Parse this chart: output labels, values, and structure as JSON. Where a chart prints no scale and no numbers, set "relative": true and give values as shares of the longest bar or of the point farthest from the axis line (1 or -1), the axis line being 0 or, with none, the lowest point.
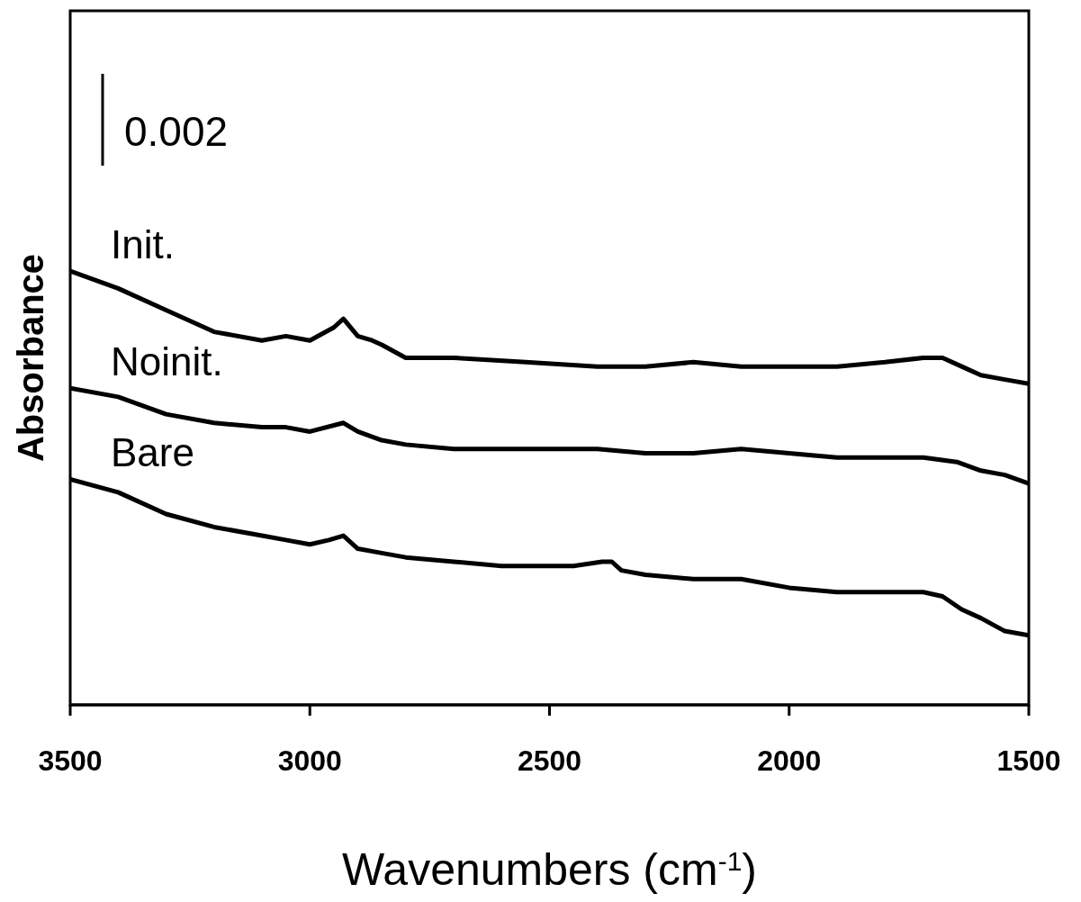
{
  "chart_data": {
    "type": "line",
    "relative": true,
    "xlabel": "Wavenumbers (cm$^{-1}$)",
    "ylabel": "Absorbance",
    "annotations": [
      "0.002"
    ],
    "xlim": [
      3500,
      1500
    ],
    "xticks": [
      3500,
      3000,
      2500,
      2000,
      1500
    ],
    "legend": false,
    "grid": false,
    "marker": "none",
    "line_style": "solid",
    "x": [
      3500,
      3400,
      3300,
      3200,
      3100,
      3050,
      3000,
      2950,
      2930,
      2900,
      2870,
      2850,
      2800,
      2700,
      2550,
      2400,
      2300,
      2200,
      2100,
      2000,
      1900,
      1800,
      1720,
      1680,
      1640,
      1600,
      1550,
      1500
    ],
    "series": [
      {
        "name": "Init.",
        "color": "#000000",
        "values": [
          1.0,
          0.96,
          0.91,
          0.86,
          0.84,
          0.85,
          0.84,
          0.87,
          0.89,
          0.85,
          0.84,
          0.83,
          0.8,
          0.8,
          0.79,
          0.78,
          0.78,
          0.79,
          0.78,
          0.78,
          0.78,
          0.79,
          0.8,
          0.8,
          0.78,
          0.76,
          0.75,
          0.74
        ]
      },
      {
        "name": "Noinit.",
        "color": "#000000",
        "x": [
          3500,
          3400,
          3300,
          3200,
          3100,
          3050,
          3000,
          2930,
          2900,
          2850,
          2800,
          2700,
          2500,
          2400,
          2300,
          2200,
          2100,
          2000,
          1900,
          1800,
          1720,
          1650,
          1600,
          1550,
          1500
        ],
        "values": [
          0.73,
          0.71,
          0.67,
          0.65,
          0.64,
          0.64,
          0.63,
          0.65,
          0.63,
          0.61,
          0.6,
          0.59,
          0.59,
          0.59,
          0.58,
          0.58,
          0.59,
          0.58,
          0.57,
          0.57,
          0.57,
          0.56,
          0.54,
          0.53,
          0.51
        ]
      },
      {
        "name": "Bare",
        "color": "#000000",
        "x": [
          3500,
          3400,
          3300,
          3200,
          3100,
          3050,
          3000,
          2960,
          2930,
          2900,
          2850,
          2800,
          2700,
          2600,
          2450,
          2390,
          2370,
          2350,
          2300,
          2200,
          2100,
          2000,
          1900,
          1800,
          1720,
          1680,
          1640,
          1600,
          1550,
          1500
        ],
        "values": [
          0.52,
          0.49,
          0.44,
          0.41,
          0.39,
          0.38,
          0.37,
          0.38,
          0.39,
          0.36,
          0.35,
          0.34,
          0.33,
          0.32,
          0.32,
          0.33,
          0.33,
          0.31,
          0.3,
          0.29,
          0.29,
          0.27,
          0.26,
          0.26,
          0.26,
          0.25,
          0.22,
          0.2,
          0.17,
          0.16
        ]
      }
    ]
  }
}
